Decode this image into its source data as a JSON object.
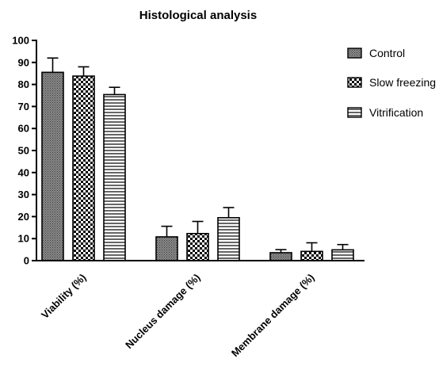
{
  "chart_data": {
    "type": "bar",
    "title": "Histological analysis",
    "xlabel": "",
    "ylabel": "",
    "ylim": [
      0,
      100
    ],
    "yticks": [
      0,
      10,
      20,
      30,
      40,
      50,
      60,
      70,
      80,
      90,
      100
    ],
    "categories": [
      "Viability (%)",
      "Nucleus damage (%)",
      "Membrane damage (%)"
    ],
    "series": [
      {
        "name": "Control",
        "pattern": "dots",
        "values": [
          85.5,
          10.8,
          3.6
        ],
        "errors": [
          6.5,
          4.8,
          1.4
        ]
      },
      {
        "name": "Slow freezing",
        "pattern": "checker",
        "values": [
          83.8,
          12.3,
          4.2
        ],
        "errors": [
          4.2,
          5.5,
          3.9
        ]
      },
      {
        "name": "Vitrification",
        "pattern": "hlines",
        "values": [
          75.4,
          19.5,
          4.9
        ],
        "errors": [
          3.3,
          4.6,
          2.4
        ]
      }
    ],
    "legend_position": "right",
    "grid": false
  }
}
